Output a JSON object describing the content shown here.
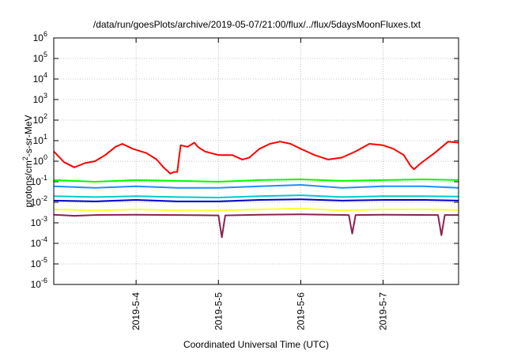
{
  "chart_data": {
    "type": "line",
    "title": "/data/run/goesPlots/archive/2019-05-07/21:00/flux/../flux/5daysMoonFluxes.txt",
    "xlabel": "Coordinated Universal Time (UTC)",
    "ylabel_parts": {
      "pre": "protons/cm",
      "sup": "2",
      "post": "-s-sr-MeV"
    },
    "y_scale": "log",
    "ylim": [
      1e-06,
      1000000.0
    ],
    "x_range": [
      "2019-05-03 00:00",
      "2019-05-07 22:00"
    ],
    "y_ticks": [
      {
        "base": "10",
        "exp": "-6"
      },
      {
        "base": "10",
        "exp": "-5"
      },
      {
        "base": "10",
        "exp": "-4"
      },
      {
        "base": "10",
        "exp": "-3"
      },
      {
        "base": "10",
        "exp": "-2"
      },
      {
        "base": "10",
        "exp": "-1"
      },
      {
        "base": "10",
        "exp": "0"
      },
      {
        "base": "10",
        "exp": "1"
      },
      {
        "base": "10",
        "exp": "2"
      },
      {
        "base": "10",
        "exp": "3"
      },
      {
        "base": "10",
        "exp": "4"
      },
      {
        "base": "10",
        "exp": "5"
      },
      {
        "base": "10",
        "exp": "6"
      }
    ],
    "x_ticks": [
      {
        "label": "2019-5-4",
        "date": "2019-05-04"
      },
      {
        "label": "2019-5-5",
        "date": "2019-05-05"
      },
      {
        "label": "2019-5-6",
        "date": "2019-05-06"
      },
      {
        "label": "2019-5-7",
        "date": "2019-05-07"
      }
    ],
    "grid": true,
    "legend": "none",
    "series": [
      {
        "color": "#ff0000",
        "points": [
          [
            "2019-05-03 00:00",
            3
          ],
          [
            "2019-05-03 03:00",
            0.9
          ],
          [
            "2019-05-03 06:00",
            0.5
          ],
          [
            "2019-05-03 09:00",
            0.8
          ],
          [
            "2019-05-03 12:00",
            1.0
          ],
          [
            "2019-05-03 15:00",
            2.0
          ],
          [
            "2019-05-03 18:00",
            5
          ],
          [
            "2019-05-03 20:00",
            7
          ],
          [
            "2019-05-03 23:00",
            4
          ],
          [
            "2019-05-04 03:00",
            2.5
          ],
          [
            "2019-05-04 06:00",
            1.2
          ],
          [
            "2019-05-04 08:00",
            0.5
          ],
          [
            "2019-05-04 10:00",
            0.25
          ],
          [
            "2019-05-04 11:00",
            0.3
          ],
          [
            "2019-05-04 12:00",
            0.3
          ],
          [
            "2019-05-04 13:00",
            6
          ],
          [
            "2019-05-04 15:00",
            5
          ],
          [
            "2019-05-04 17:00",
            8
          ],
          [
            "2019-05-04 18:00",
            5
          ],
          [
            "2019-05-04 20:00",
            3
          ],
          [
            "2019-05-05 00:00",
            2
          ],
          [
            "2019-05-05 04:00",
            2
          ],
          [
            "2019-05-05 07:00",
            1.2
          ],
          [
            "2019-05-05 09:00",
            1.5
          ],
          [
            "2019-05-05 12:00",
            4
          ],
          [
            "2019-05-05 15:00",
            7
          ],
          [
            "2019-05-05 18:00",
            9
          ],
          [
            "2019-05-05 21:00",
            7
          ],
          [
            "2019-05-06 00:00",
            4
          ],
          [
            "2019-05-06 04:00",
            2
          ],
          [
            "2019-05-06 08:00",
            1.2
          ],
          [
            "2019-05-06 12:00",
            1.5
          ],
          [
            "2019-05-06 16:00",
            3
          ],
          [
            "2019-05-06 20:00",
            7
          ],
          [
            "2019-05-07 00:00",
            6
          ],
          [
            "2019-05-07 03:00",
            4
          ],
          [
            "2019-05-07 06:00",
            2
          ],
          [
            "2019-05-07 08:00",
            0.6
          ],
          [
            "2019-05-07 09:00",
            0.4
          ],
          [
            "2019-05-07 11:00",
            0.8
          ],
          [
            "2019-05-07 15:00",
            2.5
          ],
          [
            "2019-05-07 19:00",
            9
          ],
          [
            "2019-05-07 22:00",
            8
          ]
        ]
      },
      {
        "color": "#00ff00",
        "points": [
          [
            "2019-05-03 00:00",
            0.12
          ],
          [
            "2019-05-03 12:00",
            0.1
          ],
          [
            "2019-05-04 00:00",
            0.12
          ],
          [
            "2019-05-04 12:00",
            0.11
          ],
          [
            "2019-05-05 00:00",
            0.1
          ],
          [
            "2019-05-05 12:00",
            0.12
          ],
          [
            "2019-05-06 00:00",
            0.13
          ],
          [
            "2019-05-06 12:00",
            0.11
          ],
          [
            "2019-05-07 00:00",
            0.12
          ],
          [
            "2019-05-07 12:00",
            0.13
          ],
          [
            "2019-05-07 22:00",
            0.12
          ]
        ]
      },
      {
        "color": "#1e90ff",
        "points": [
          [
            "2019-05-03 00:00",
            0.06
          ],
          [
            "2019-05-03 12:00",
            0.05
          ],
          [
            "2019-05-04 00:00",
            0.06
          ],
          [
            "2019-05-04 12:00",
            0.05
          ],
          [
            "2019-05-05 00:00",
            0.05
          ],
          [
            "2019-05-05 12:00",
            0.06
          ],
          [
            "2019-05-06 00:00",
            0.07
          ],
          [
            "2019-05-06 12:00",
            0.05
          ],
          [
            "2019-05-07 00:00",
            0.06
          ],
          [
            "2019-05-07 12:00",
            0.06
          ],
          [
            "2019-05-07 22:00",
            0.05
          ]
        ]
      },
      {
        "color": "#00cccc",
        "points": [
          [
            "2019-05-03 00:00",
            0.02
          ],
          [
            "2019-05-03 12:00",
            0.018
          ],
          [
            "2019-05-04 00:00",
            0.02
          ],
          [
            "2019-05-04 12:00",
            0.018
          ],
          [
            "2019-05-05 00:00",
            0.017
          ],
          [
            "2019-05-05 12:00",
            0.02
          ],
          [
            "2019-05-06 00:00",
            0.022
          ],
          [
            "2019-05-06 12:00",
            0.018
          ],
          [
            "2019-05-07 00:00",
            0.02
          ],
          [
            "2019-05-07 12:00",
            0.02
          ],
          [
            "2019-05-07 22:00",
            0.019
          ]
        ]
      },
      {
        "color": "#0000cc",
        "points": [
          [
            "2019-05-03 00:00",
            0.012
          ],
          [
            "2019-05-03 12:00",
            0.011
          ],
          [
            "2019-05-04 00:00",
            0.013
          ],
          [
            "2019-05-04 12:00",
            0.011
          ],
          [
            "2019-05-05 00:00",
            0.011
          ],
          [
            "2019-05-05 12:00",
            0.013
          ],
          [
            "2019-05-06 00:00",
            0.014
          ],
          [
            "2019-05-06 12:00",
            0.012
          ],
          [
            "2019-05-07 00:00",
            0.013
          ],
          [
            "2019-05-07 12:00",
            0.013
          ],
          [
            "2019-05-07 22:00",
            0.012
          ]
        ]
      },
      {
        "color": "#ffff33",
        "points": [
          [
            "2019-05-03 00:00",
            0.0045
          ],
          [
            "2019-05-03 12:00",
            0.004
          ],
          [
            "2019-05-04 00:00",
            0.0045
          ],
          [
            "2019-05-04 12:00",
            0.004
          ],
          [
            "2019-05-05 00:00",
            0.004
          ],
          [
            "2019-05-05 12:00",
            0.0045
          ],
          [
            "2019-05-06 00:00",
            0.005
          ],
          [
            "2019-05-06 12:00",
            0.004
          ],
          [
            "2019-05-07 00:00",
            0.0045
          ],
          [
            "2019-05-07 12:00",
            0.0045
          ],
          [
            "2019-05-07 22:00",
            0.0042
          ]
        ]
      },
      {
        "color": "#8b2252",
        "points": [
          [
            "2019-05-03 00:00",
            0.0025
          ],
          [
            "2019-05-03 06:00",
            0.0022
          ],
          [
            "2019-05-03 12:00",
            0.0024
          ],
          [
            "2019-05-04 00:00",
            0.0025
          ],
          [
            "2019-05-04 12:00",
            0.0024
          ],
          [
            "2019-05-05 00:00",
            0.0023
          ],
          [
            "2019-05-05 01:00",
            0.0002
          ],
          [
            "2019-05-05 02:00",
            0.0023
          ],
          [
            "2019-05-05 12:00",
            0.0025
          ],
          [
            "2019-05-06 00:00",
            0.0026
          ],
          [
            "2019-05-06 14:00",
            0.0024
          ],
          [
            "2019-05-06 15:00",
            0.0003
          ],
          [
            "2019-05-06 16:00",
            0.0024
          ],
          [
            "2019-05-07 00:00",
            0.0025
          ],
          [
            "2019-05-07 16:00",
            0.0024
          ],
          [
            "2019-05-07 17:00",
            0.00025
          ],
          [
            "2019-05-07 18:00",
            0.0024
          ],
          [
            "2019-05-07 22:00",
            0.0024
          ]
        ]
      }
    ]
  }
}
